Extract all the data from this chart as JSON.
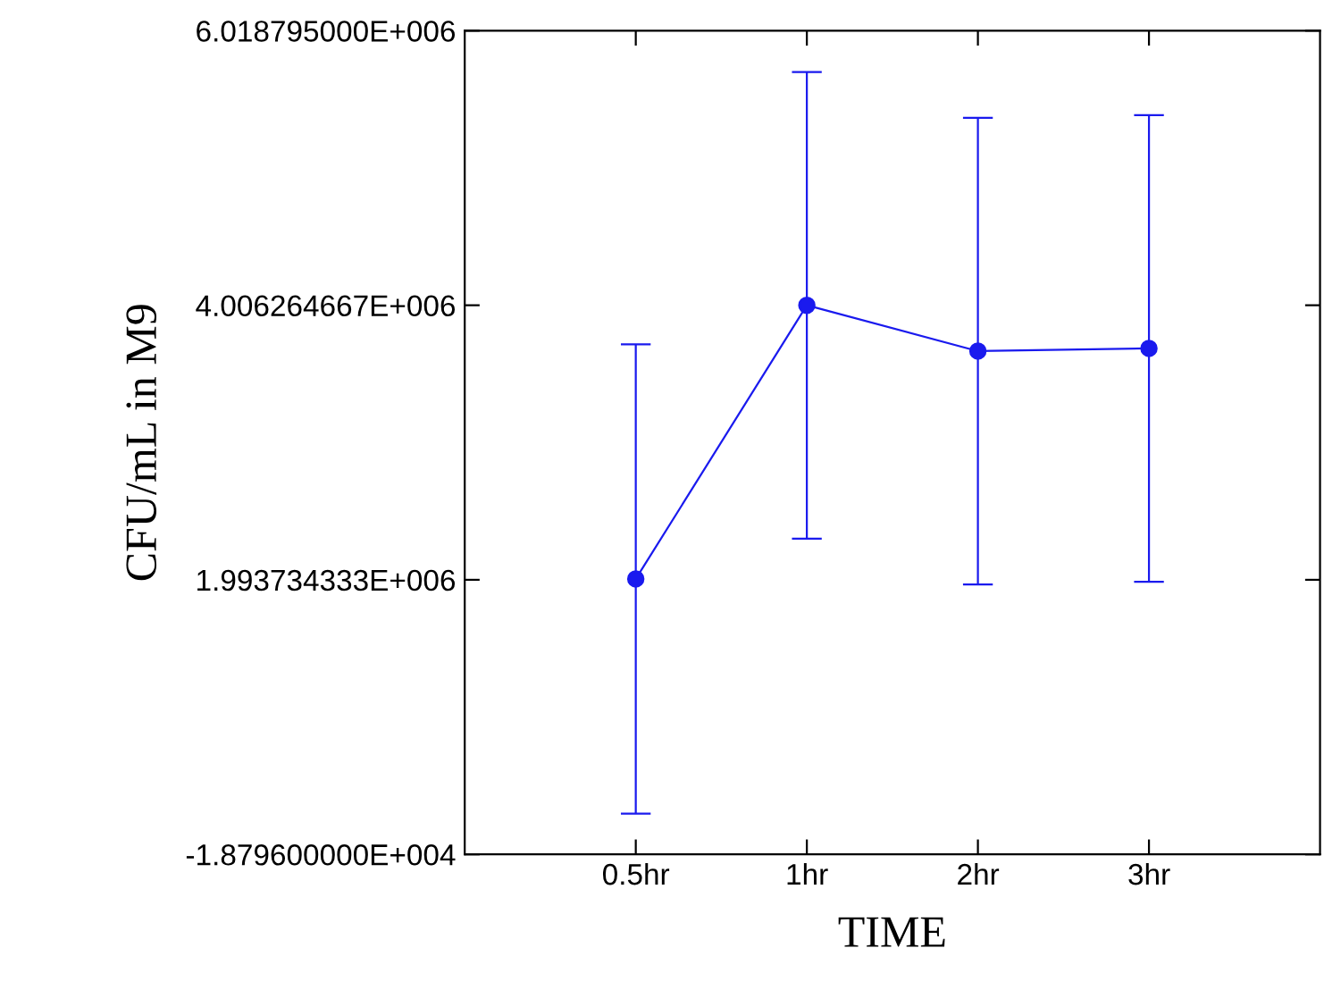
{
  "chart_data": {
    "type": "line",
    "xlabel": "TIME",
    "ylabel": "CFU/mL in M9",
    "categories": [
      "0.5hr",
      "1hr",
      "2hr",
      "3hr"
    ],
    "series": [
      {
        "color": "#1a1aee",
        "values": [
          2000000,
          4006000,
          3670000,
          3690000
        ],
        "errors": [
          1720000,
          1710000,
          1710000,
          1710000
        ]
      }
    ],
    "ylim": [
      -18796,
      6018795
    ],
    "yticks": [
      {
        "value": -18796,
        "label": "-1.879600000E+004"
      },
      {
        "value": 1993734.333,
        "label": "1.993734333E+006"
      },
      {
        "value": 4006264.667,
        "label": "4.006264667E+006"
      },
      {
        "value": 6018795,
        "label": "6.018795000E+006"
      }
    ],
    "marker": "circle",
    "line_style": "solid",
    "grid": false,
    "legend": false
  }
}
